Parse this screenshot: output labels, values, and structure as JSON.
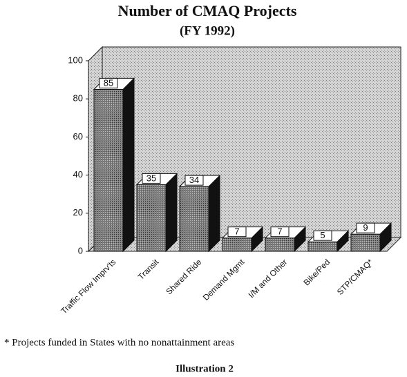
{
  "chart_data": {
    "type": "bar3d",
    "title": "Number of CMAQ Projects",
    "subtitle": "(FY 1992)",
    "categories": [
      "Traffic Flow Imprv'ts",
      "Transit",
      "Shared Ride",
      "Demand Mgmt",
      "I/M and Other",
      "Bike/Ped",
      "STP/CMAQ*"
    ],
    "values": [
      85,
      35,
      34,
      7,
      7,
      5,
      9
    ],
    "color": "#6a6a6a",
    "ylim": [
      0,
      100
    ],
    "yticks": [
      0,
      20,
      40,
      60,
      80,
      100
    ],
    "grid": false,
    "footnote": "* Projects funded in States with no nonattainment areas",
    "caption": "Illustration 2"
  }
}
